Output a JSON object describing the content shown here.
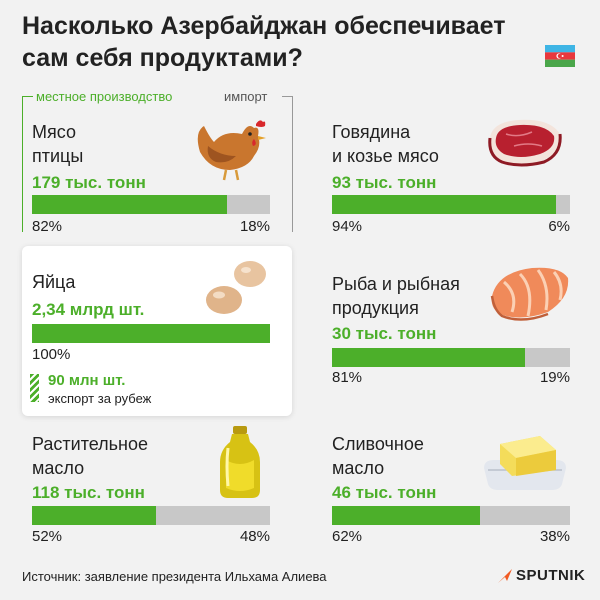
{
  "title": "Насколько Азербайджан обеспечивает сам себя продуктами?",
  "legend": {
    "production": "местное производство",
    "import": "импорт"
  },
  "colors": {
    "production": "#4caf2a",
    "import": "#c8c8c8",
    "background": "#f2f2f2"
  },
  "chart_data": {
    "type": "bar",
    "title": "Насколько Азербайджан обеспечивает сам себя продуктами?",
    "series": [
      {
        "name": "местное производство",
        "values": [
          82,
          94,
          100,
          81,
          52,
          62
        ]
      },
      {
        "name": "импорт",
        "values": [
          18,
          6,
          0,
          19,
          48,
          38
        ]
      }
    ],
    "categories": [
      "Мясо птицы",
      "Говядина и козье мясо",
      "Яйца",
      "Рыба и рыбная продукция",
      "Растительное масло",
      "Сливочное масло"
    ],
    "items": [
      {
        "name_lines": [
          "Мясо",
          "птицы"
        ],
        "amount": "179 тыс. тонн",
        "local": 82,
        "import": 18,
        "local_label": "82%",
        "import_label": "18%",
        "icon": "chicken-icon"
      },
      {
        "name_lines": [
          "Говядина",
          "и козье мясо"
        ],
        "amount": "93 тыс. тонн",
        "local": 94,
        "import": 6,
        "local_label": "94%",
        "import_label": "6%",
        "icon": "beef-icon"
      },
      {
        "name_lines": [
          "Яйца"
        ],
        "amount": "2,34 млрд шт.",
        "local": 100,
        "import": 0,
        "local_label": "100%",
        "import_label": "",
        "icon": "eggs-icon"
      },
      {
        "name_lines": [
          "Рыба и рыбная",
          "продукция"
        ],
        "amount": "30 тыс. тонн",
        "local": 81,
        "import": 19,
        "local_label": "81%",
        "import_label": "19%",
        "icon": "salmon-icon"
      },
      {
        "name_lines": [
          "Растительное",
          "масло"
        ],
        "amount": "118 тыс. тонн",
        "local": 52,
        "import": 48,
        "local_label": "52%",
        "import_label": "48%",
        "icon": "oil-bottle-icon"
      },
      {
        "name_lines": [
          "Сливочное",
          "масло"
        ],
        "amount": "46 тыс. тонн",
        "local": 62,
        "import": 38,
        "local_label": "62%",
        "import_label": "38%",
        "icon": "butter-icon"
      }
    ],
    "export_note": {
      "amount": "90 млн шт.",
      "label": "экспорт за рубеж"
    }
  },
  "source": "Источник: заявление президента Ильхама Алиева",
  "brand": "SPUTNIK"
}
